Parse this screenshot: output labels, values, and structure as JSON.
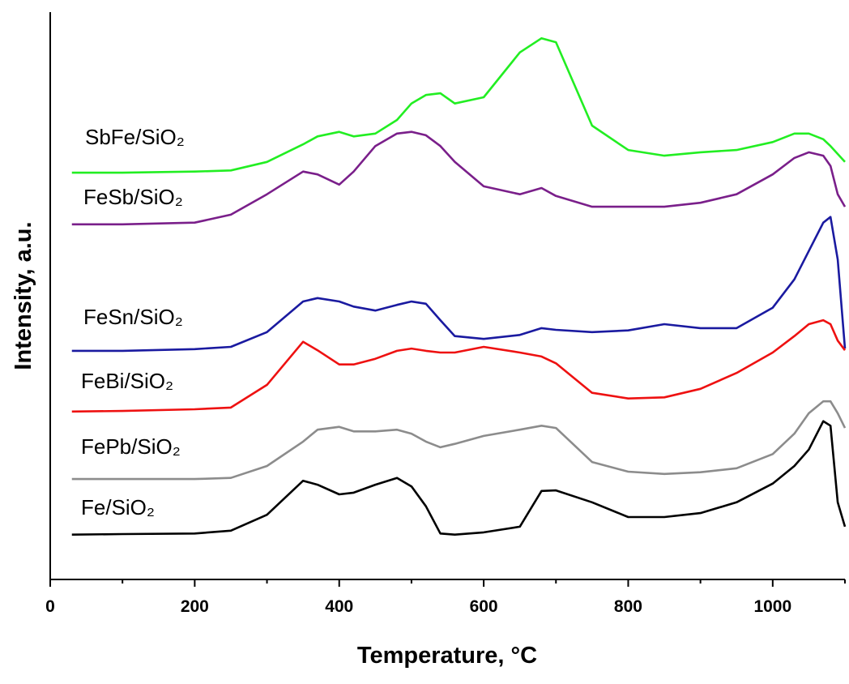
{
  "chart_data": {
    "type": "line",
    "xlabel": "Temperature, °C",
    "ylabel": "Intensity, a.u.",
    "xlim": [
      0,
      1100
    ],
    "xticks": [
      0,
      200,
      400,
      600,
      800,
      1000
    ],
    "xminorticks": [
      100,
      300,
      500,
      700,
      900,
      1100
    ],
    "ylim": [
      0,
      100
    ],
    "x": [
      30,
      100,
      200,
      250,
      300,
      350,
      370,
      400,
      420,
      450,
      480,
      500,
      520,
      540,
      560,
      600,
      650,
      680,
      700,
      750,
      800,
      850,
      900,
      950,
      1000,
      1030,
      1050,
      1070,
      1080,
      1090,
      1100
    ],
    "series": [
      {
        "name": "SbFe/SiO₂",
        "color": "#22ee22",
        "values": [
          71.7,
          71.7,
          71.9,
          72.1,
          73.6,
          76.7,
          78.1,
          78.9,
          78.1,
          78.6,
          81.0,
          83.9,
          85.4,
          85.7,
          83.9,
          85.0,
          92.9,
          95.4,
          94.7,
          80.0,
          75.7,
          74.7,
          75.3,
          75.7,
          77.1,
          78.6,
          78.6,
          77.6,
          76.4,
          75.0,
          73.6
        ]
      },
      {
        "name": "FeSb/SiO₂",
        "color": "#7a1f8a",
        "values": [
          62.6,
          62.6,
          62.9,
          64.3,
          67.9,
          71.9,
          71.4,
          69.6,
          71.9,
          76.4,
          78.6,
          78.9,
          78.3,
          76.4,
          73.6,
          69.3,
          67.9,
          69.0,
          67.6,
          65.7,
          65.7,
          65.7,
          66.4,
          67.9,
          71.4,
          74.3,
          75.3,
          74.7,
          72.9,
          67.9,
          65.7
        ]
      },
      {
        "name": "FeSn/SiO₂",
        "color": "#1a1aa0",
        "values": [
          40.3,
          40.3,
          40.6,
          41.0,
          43.6,
          49.0,
          49.6,
          49.0,
          48.1,
          47.4,
          48.4,
          49.0,
          48.6,
          45.7,
          42.9,
          42.4,
          43.1,
          44.3,
          44.0,
          43.6,
          43.9,
          45.0,
          44.3,
          44.3,
          47.9,
          52.9,
          57.9,
          62.9,
          63.9,
          56.4,
          40.7
        ]
      },
      {
        "name": "FeBi/SiO₂",
        "color": "#ee1111",
        "values": [
          29.6,
          29.7,
          30.0,
          30.3,
          34.3,
          41.9,
          40.4,
          37.9,
          37.9,
          38.9,
          40.3,
          40.7,
          40.3,
          40.0,
          40.0,
          41.0,
          40.0,
          39.3,
          38.1,
          32.9,
          31.9,
          32.1,
          33.6,
          36.4,
          40.0,
          42.9,
          45.0,
          45.7,
          45.0,
          42.1,
          40.4
        ]
      },
      {
        "name": "FePb/SiO₂",
        "color": "#8c8c8c",
        "values": [
          17.7,
          17.7,
          17.7,
          17.9,
          20.0,
          24.3,
          26.4,
          26.9,
          26.1,
          26.1,
          26.4,
          25.7,
          24.3,
          23.3,
          23.9,
          25.3,
          26.4,
          27.1,
          26.7,
          20.7,
          19.0,
          18.6,
          18.9,
          19.6,
          22.1,
          25.7,
          29.3,
          31.4,
          31.4,
          29.3,
          26.7
        ]
      },
      {
        "name": "Fe/SiO₂",
        "color": "#000000",
        "values": [
          7.9,
          8.0,
          8.1,
          8.6,
          11.4,
          17.4,
          16.7,
          15.0,
          15.3,
          16.7,
          17.9,
          16.4,
          12.9,
          8.1,
          7.9,
          8.3,
          9.3,
          15.6,
          15.7,
          13.6,
          11.0,
          11.0,
          11.7,
          13.6,
          16.9,
          20.0,
          22.9,
          27.9,
          27.1,
          13.6,
          9.3
        ]
      }
    ]
  }
}
